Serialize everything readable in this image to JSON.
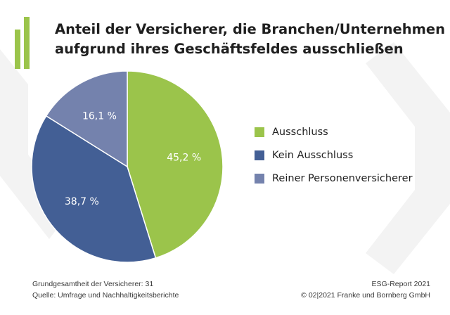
{
  "title_lines": [
    "Anteil der Versicherer, die Branchen/Unternehmen",
    "aufgrund ihres Geschäftsfeldes ausschließen"
  ],
  "colors": {
    "ausschluss": "#9bc44b",
    "kein_ausschluss": "#435f95",
    "reiner": "#7482ad",
    "logo": "#9bc44b",
    "background_chevron": "#f3f3f3"
  },
  "chart_data": {
    "type": "pie",
    "title": "Anteil der Versicherer, die Branchen/Unternehmen aufgrund ihres Geschäftsfeldes ausschließen",
    "slices": [
      {
        "name": "Ausschluss",
        "value": 45.2,
        "label": "45,2 %",
        "color": "#9bc44b"
      },
      {
        "name": "Kein Ausschluss",
        "value": 38.7,
        "label": "38,7 %",
        "color": "#435f95"
      },
      {
        "name": "Reiner Personenversicherer",
        "value": 16.1,
        "label": "16,1 %",
        "color": "#7482ad"
      }
    ],
    "start": "top",
    "direction": "clockwise",
    "legend_position": "right"
  },
  "legend": [
    {
      "label": "Ausschluss",
      "color": "#9bc44b"
    },
    {
      "label": "Kein Ausschluss",
      "color": "#435f95"
    },
    {
      "label": "Reiner Personenversicherer",
      "color": "#7482ad"
    }
  ],
  "footer": {
    "left": [
      "Grundgesamtheit der Versicherer: 31",
      "Quelle: Umfrage und Nachhaltigkeitsberichte"
    ],
    "right": [
      "ESG-Report 2021",
      "© 02|2021 Franke und Bornberg GmbH"
    ]
  }
}
